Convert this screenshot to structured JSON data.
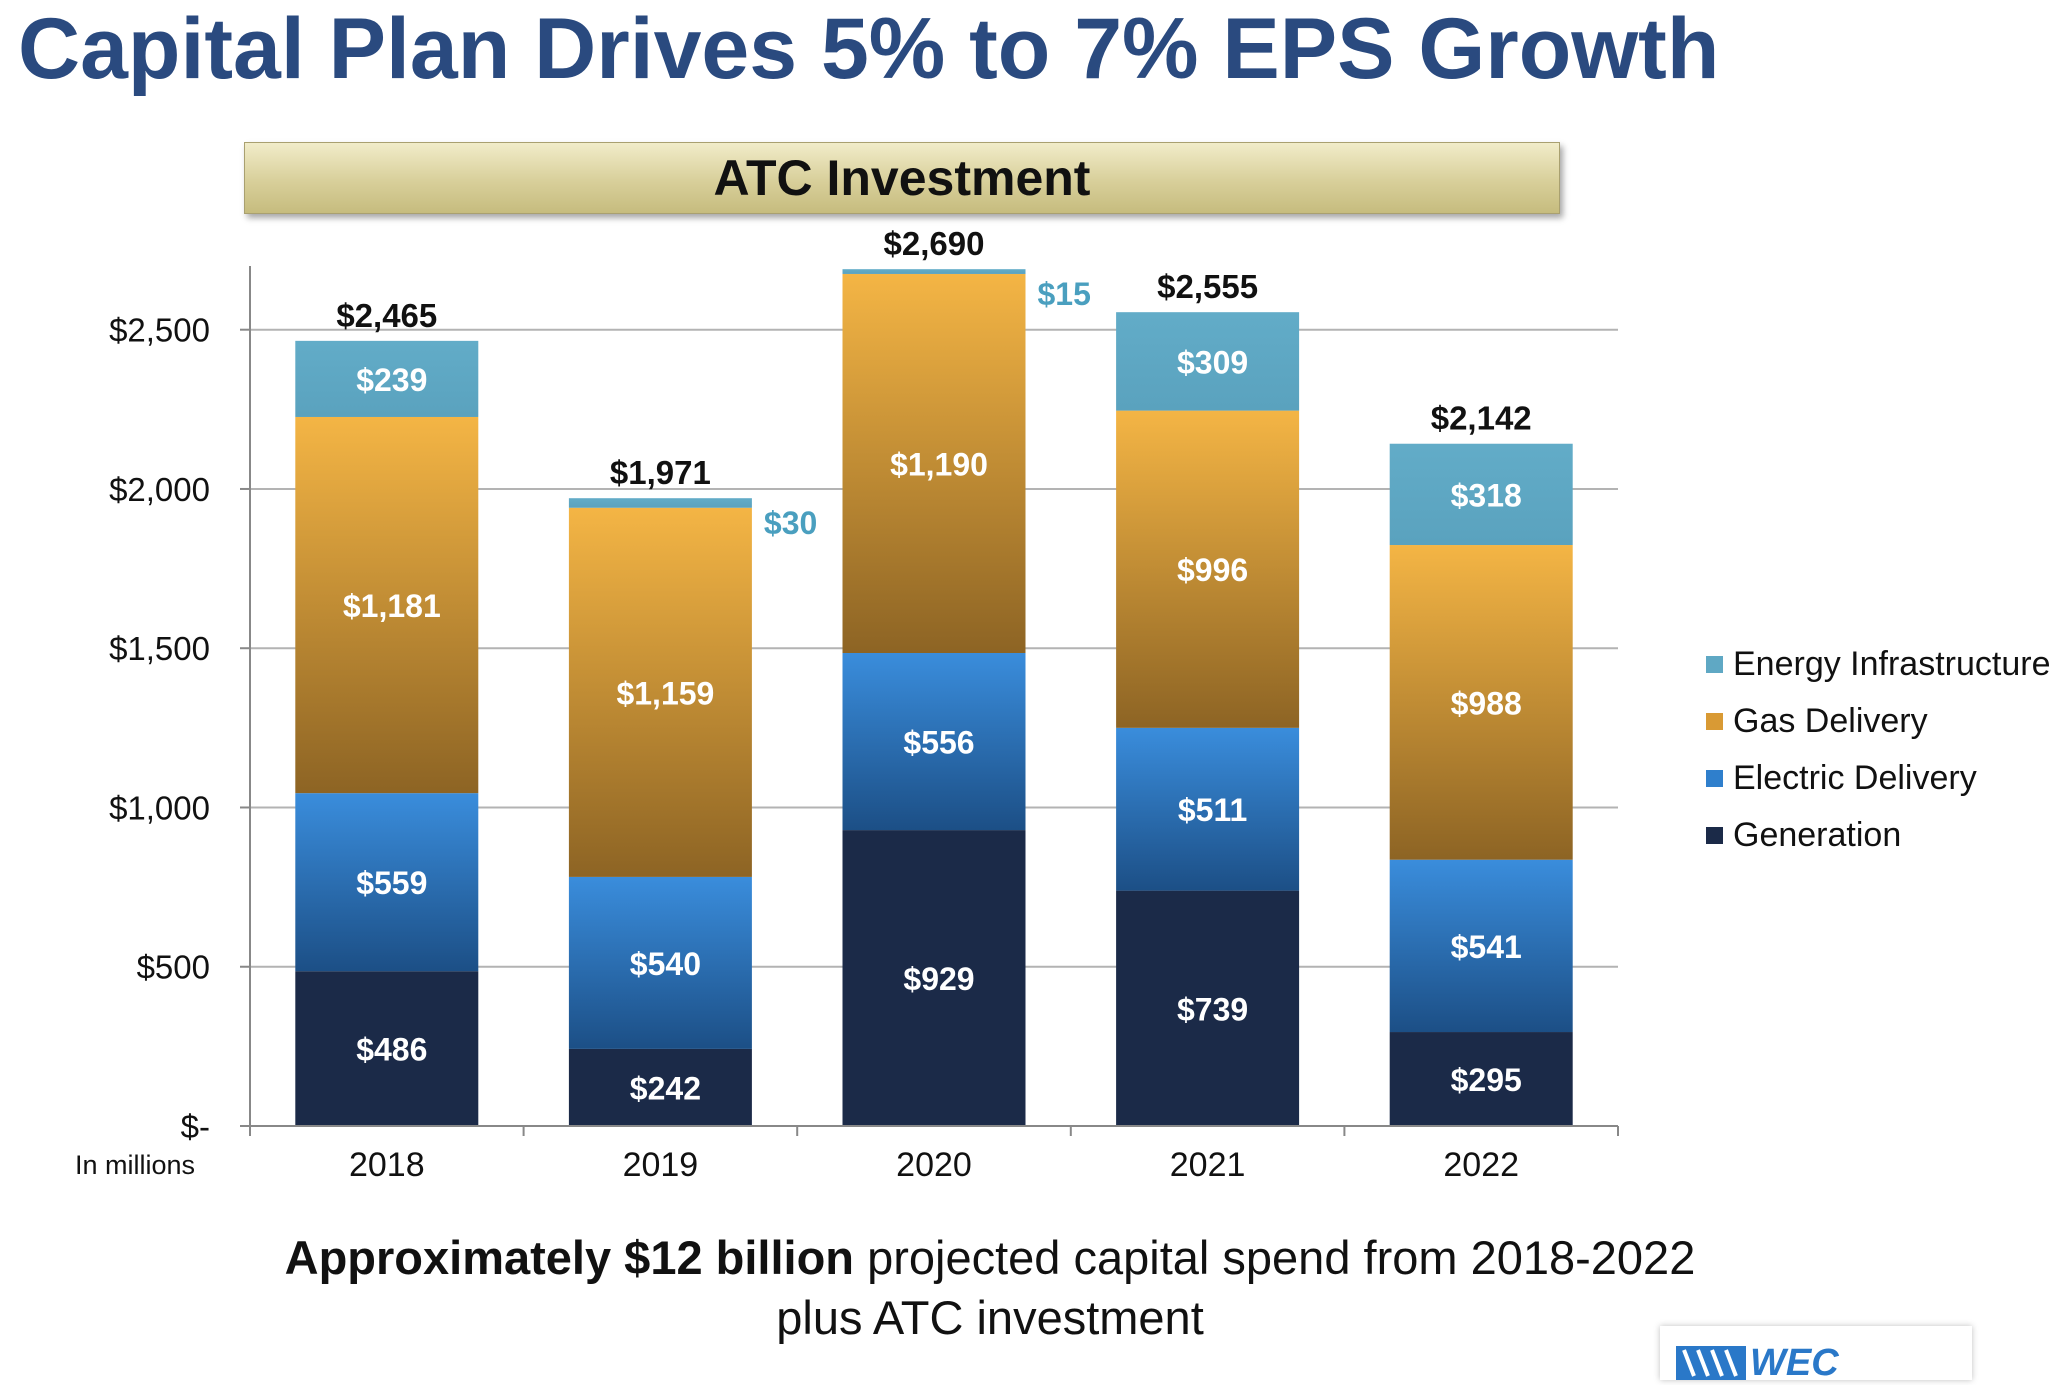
{
  "title": "Capital Plan Drives 5% to 7% EPS Growth",
  "banner": "ATC Investment",
  "footnote": {
    "bold": "Approximately $12 billion",
    "rest_line1": " projected capital spend from 2018-2022",
    "line2": "plus ATC investment"
  },
  "logo": {
    "text": "WEC"
  },
  "colors": {
    "generation": "#1b2a48",
    "electric": "#2f7fcc",
    "gas": "#e8a83a",
    "energy": "#5fa8c4",
    "title": "#2a4a7f"
  },
  "chart_data": {
    "type": "bar",
    "stacked": true,
    "categories": [
      "2018",
      "2019",
      "2020",
      "2021",
      "2022"
    ],
    "series": [
      {
        "name": "Generation",
        "values": [
          486,
          242,
          929,
          739,
          295
        ],
        "labels": [
          "$486",
          "$242",
          "$929",
          "$739",
          "$295"
        ]
      },
      {
        "name": "Electric Delivery",
        "values": [
          559,
          540,
          556,
          511,
          541
        ],
        "labels": [
          "$559",
          "$540",
          "$556",
          "$511",
          "$541"
        ]
      },
      {
        "name": "Gas Delivery",
        "values": [
          1181,
          1159,
          1190,
          996,
          988
        ],
        "labels": [
          "$1,181",
          "$1,159",
          "$1,190",
          "$996",
          "$988"
        ]
      },
      {
        "name": "Energy Infrastructure",
        "values": [
          239,
          30,
          15,
          309,
          318
        ],
        "labels": [
          "$239",
          "$30",
          "$15",
          "$309",
          "$318"
        ]
      }
    ],
    "totals": [
      2465,
      1971,
      2690,
      2555,
      2142
    ],
    "total_labels": [
      "$2,465",
      "$1,971",
      "$2,690",
      "$2,555",
      "$2,142"
    ],
    "ylim": [
      0,
      2700
    ],
    "yticks": [
      0,
      500,
      1000,
      1500,
      2000,
      2500
    ],
    "ytick_labels": [
      "$-",
      "$500",
      "$1,000",
      "$1,500",
      "$2,000",
      "$2,500"
    ],
    "ylabel": "In millions",
    "grid": true,
    "legend": [
      "Energy Infrastructure",
      "Gas Delivery",
      "Electric Delivery",
      "Generation"
    ],
    "legend_position": "right"
  }
}
